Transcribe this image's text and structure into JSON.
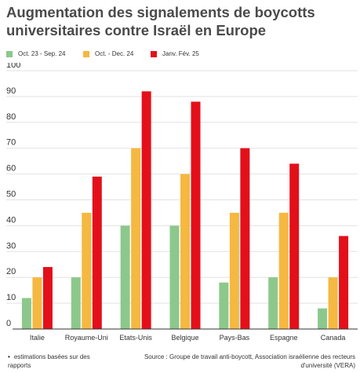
{
  "title": "Augmentation des signalements de boycotts universitaires contre Israël en Europe",
  "footnote": {
    "bullet": "•",
    "text": "estimations basées sur des rapports"
  },
  "source": "Source : Groupe de travail anti-boycott, Association israélienne des recteurs d'université (VERA)",
  "colors": {
    "green": "#8cc88c",
    "orange": "#f5b841",
    "red": "#e3101a",
    "grid": "#e2e2e2",
    "axis": "#333333"
  },
  "chart_data": {
    "type": "bar",
    "categories": [
      "Italie",
      "Royaume-Uni",
      "Etats-Unis",
      "Belgique",
      "Pays-Bas",
      "Espagne",
      "Canada"
    ],
    "series": [
      {
        "name": "Oct. 23 - Sep. 24",
        "color": "#8cc88c",
        "values": [
          12,
          20,
          40,
          40,
          18,
          20,
          8
        ]
      },
      {
        "name": "Oct. - Dec. 24",
        "color": "#f5b841",
        "values": [
          20,
          45,
          70,
          60,
          45,
          45,
          20
        ]
      },
      {
        "name": "Janv. Fév. 25",
        "color": "#e3101a",
        "values": [
          24,
          59,
          92,
          88,
          70,
          64,
          36
        ]
      }
    ],
    "yticks": [
      0,
      10,
      20,
      30,
      40,
      50,
      60,
      70,
      80,
      90,
      100
    ],
    "ylim": [
      0,
      100
    ],
    "xlabel": "",
    "ylabel": "",
    "grid": true,
    "legend_position": "top-left"
  }
}
